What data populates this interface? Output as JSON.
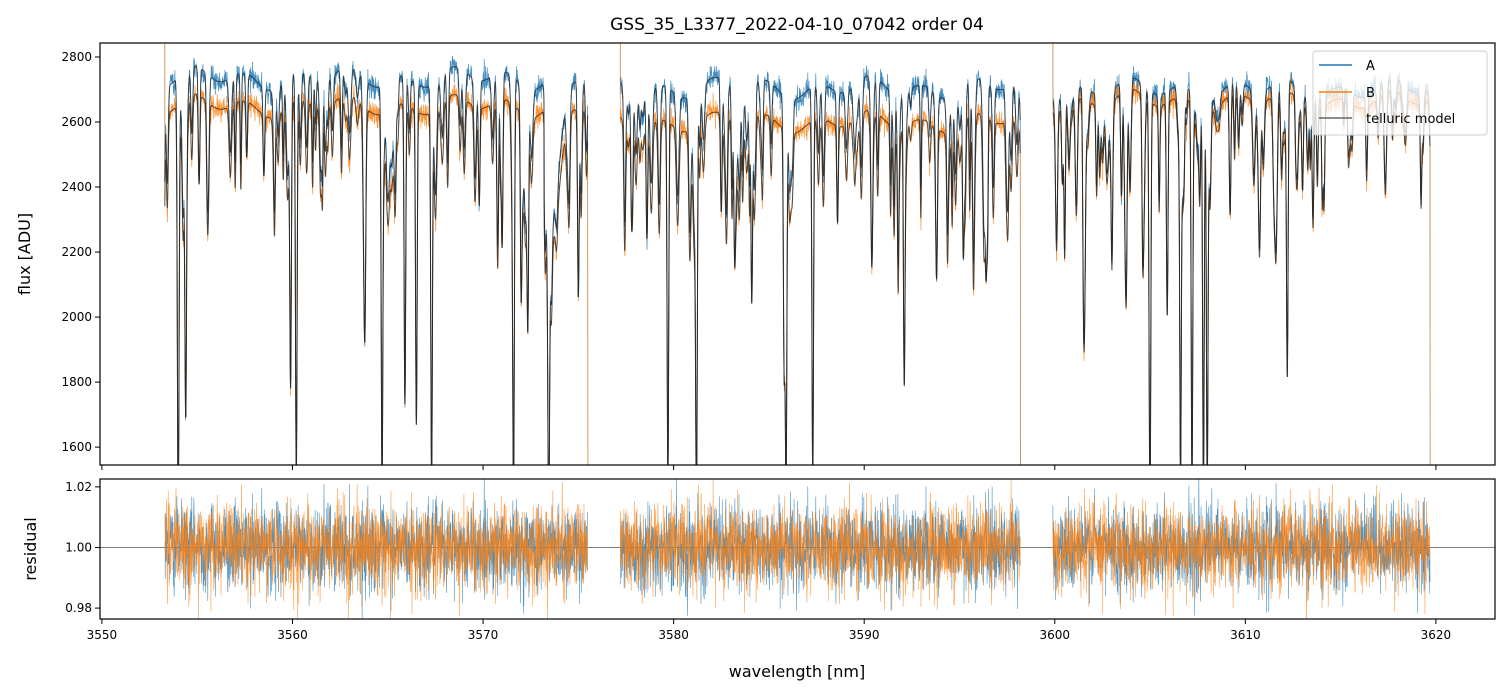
{
  "chart_data": [
    {
      "type": "line",
      "title": "GSS_35_L3377_2022-04-10_07042  order 04",
      "xlabel": "",
      "ylabel": "flux [ADU]",
      "xlim": [
        3549.9,
        3623.1
      ],
      "ylim": [
        1545,
        2843
      ],
      "xticks": [
        3550,
        3560,
        3570,
        3580,
        3590,
        3600,
        3610,
        3620
      ],
      "yticks": [
        1600,
        1800,
        2000,
        2200,
        2400,
        2600,
        2800
      ],
      "ytick_labels": [
        "1600",
        "1800",
        "2000",
        "2200",
        "2400",
        "2600",
        "2800"
      ],
      "legend": {
        "placement": "top-right",
        "entries": [
          "A",
          "B",
          "telluric model"
        ]
      },
      "series": [
        {
          "name": "A",
          "color": "#1f77b4",
          "segments_continuum": [
            [
              3553.3,
              3575.5,
              2735
            ],
            [
              3577.2,
              3598.2,
              2705
            ],
            [
              3599.9,
              3619.7,
              2700
            ]
          ]
        },
        {
          "name": "B",
          "color": "#ff7f0e",
          "segments_continuum": [
            [
              3553.3,
              3575.5,
              2650
            ],
            [
              3577.2,
              3598.2,
              2600
            ],
            [
              3599.9,
              3619.7,
              2665
            ]
          ]
        },
        {
          "name": "telluric model",
          "color": "#333333"
        }
      ],
      "absorption_lines_nm_minflux": [
        [
          3554.0,
          1500
        ],
        [
          3554.4,
          1850
        ],
        [
          3555.1,
          2380
        ],
        [
          3557.6,
          2480
        ],
        [
          3558.5,
          2460
        ],
        [
          3559.9,
          1790
        ],
        [
          3560.2,
          1500
        ],
        [
          3563.8,
          2300
        ],
        [
          3564.7,
          1500
        ],
        [
          3565.9,
          1730
        ],
        [
          3566.5,
          1680
        ],
        [
          3567.3,
          1500
        ],
        [
          3569.8,
          2350
        ],
        [
          3571.0,
          2200
        ],
        [
          3571.6,
          1500
        ],
        [
          3572.0,
          2080
        ],
        [
          3572.35,
          2030
        ],
        [
          3573.45,
          1760
        ],
        [
          3575.0,
          2070
        ],
        [
          3577.8,
          2300
        ],
        [
          3578.6,
          2250
        ],
        [
          3579.7,
          1500
        ],
        [
          3581.2,
          1500
        ],
        [
          3582.5,
          2300
        ],
        [
          3583.2,
          2250
        ],
        [
          3584.1,
          2040
        ],
        [
          3585.8,
          1870
        ],
        [
          3585.9,
          1500
        ],
        [
          3587.3,
          1500
        ],
        [
          3588.6,
          2300
        ],
        [
          3590.4,
          2350
        ],
        [
          3592.1,
          1830
        ],
        [
          3593.8,
          2350
        ],
        [
          3595.2,
          2200
        ],
        [
          3596.4,
          2400
        ],
        [
          3600.4,
          2430
        ],
        [
          3603.5,
          2350
        ],
        [
          3605.0,
          1500
        ],
        [
          3605.9,
          2010
        ],
        [
          3606.6,
          1500
        ],
        [
          3607.2,
          1500
        ],
        [
          3607.8,
          1500
        ],
        [
          3608.0,
          1500
        ],
        [
          3609.2,
          2300
        ],
        [
          3612.2,
          1800
        ],
        [
          3613.0,
          2400
        ]
      ]
    },
    {
      "type": "line",
      "title": "",
      "xlabel": "wavelength [nm]",
      "ylabel": "residual",
      "xlim": [
        3549.9,
        3623.1
      ],
      "ylim": [
        0.9764,
        1.0226
      ],
      "xticks": [
        3550,
        3560,
        3570,
        3580,
        3590,
        3600,
        3610,
        3620
      ],
      "xtick_labels": [
        "3550",
        "3560",
        "3570",
        "3580",
        "3590",
        "3600",
        "3610",
        "3620"
      ],
      "yticks": [
        0.98,
        1.0,
        1.02
      ],
      "ytick_labels": [
        "0.98",
        "1.00",
        "1.02"
      ],
      "reference_line": 1.0,
      "series": [
        {
          "name": "A",
          "color": "#1f77b4",
          "noise_sigma": 0.008
        },
        {
          "name": "B",
          "color": "#ff7f0e",
          "noise_sigma": 0.008
        }
      ]
    }
  ]
}
